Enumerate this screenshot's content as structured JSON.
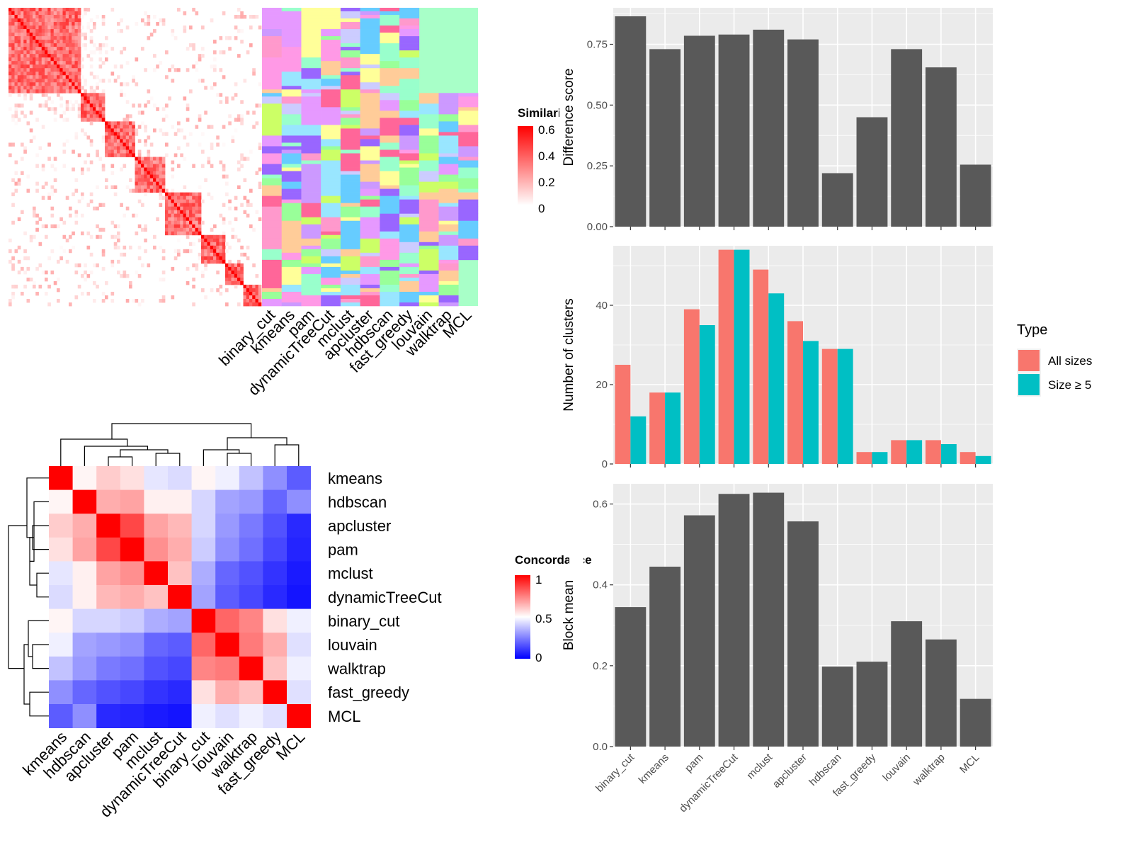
{
  "colors": {
    "panel_bg": "#ebebeb",
    "bar_gray": "#595959",
    "all_sizes": "#f8766d",
    "size_ge5": "#00bfc4",
    "sim_high": "#ff0000",
    "sim_low": "#ffffff",
    "conc_high": "#ff0000",
    "conc_mid": "#ffffff",
    "conc_low": "#0000ff"
  },
  "chart_data": [
    {
      "type": "heatmap",
      "id": "similarity",
      "legend_title": "Similarity",
      "legend_ticks": [
        "0.6",
        "0.4",
        "0.2",
        "0"
      ],
      "range": [
        0,
        0.65
      ]
    },
    {
      "type": "heatmap",
      "id": "cluster-labels",
      "columns": [
        "binary_cut",
        "kmeans",
        "pam",
        "dynamicTreeCut",
        "mclust",
        "apcluster",
        "hdbscan",
        "fast_greedy",
        "louvain",
        "walktrap",
        "MCL"
      ]
    },
    {
      "type": "heatmap",
      "id": "concordance",
      "legend_title": "Concordance",
      "legend_ticks": [
        "1",
        "0.5",
        "0"
      ],
      "rows": [
        "kmeans",
        "hdbscan",
        "apcluster",
        "pam",
        "mclust",
        "dynamicTreeCut",
        "binary_cut",
        "louvain",
        "walktrap",
        "fast_greedy",
        "MCL"
      ],
      "columns": [
        "kmeans",
        "hdbscan",
        "apcluster",
        "pam",
        "mclust",
        "dynamicTreeCut",
        "binary_cut",
        "louvain",
        "walktrap",
        "fast_greedy",
        "MCL"
      ],
      "values": [
        [
          1.0,
          0.52,
          0.6,
          0.56,
          0.45,
          0.43,
          0.52,
          0.47,
          0.38,
          0.28,
          0.18
        ],
        [
          0.52,
          1.0,
          0.66,
          0.68,
          0.53,
          0.53,
          0.42,
          0.32,
          0.3,
          0.2,
          0.28
        ],
        [
          0.6,
          0.66,
          1.0,
          0.86,
          0.68,
          0.64,
          0.42,
          0.3,
          0.24,
          0.16,
          0.08
        ],
        [
          0.56,
          0.68,
          0.86,
          1.0,
          0.72,
          0.66,
          0.4,
          0.28,
          0.22,
          0.14,
          0.07
        ],
        [
          0.45,
          0.53,
          0.68,
          0.72,
          1.0,
          0.62,
          0.34,
          0.2,
          0.16,
          0.1,
          0.05
        ],
        [
          0.43,
          0.53,
          0.64,
          0.66,
          0.62,
          1.0,
          0.32,
          0.18,
          0.14,
          0.08,
          0.04
        ],
        [
          0.52,
          0.42,
          0.42,
          0.4,
          0.34,
          0.32,
          1.0,
          0.8,
          0.74,
          0.56,
          0.47
        ],
        [
          0.47,
          0.32,
          0.3,
          0.28,
          0.2,
          0.18,
          0.8,
          1.0,
          0.76,
          0.66,
          0.44
        ],
        [
          0.38,
          0.3,
          0.24,
          0.22,
          0.16,
          0.14,
          0.74,
          0.76,
          1.0,
          0.62,
          0.47
        ],
        [
          0.28,
          0.2,
          0.16,
          0.14,
          0.1,
          0.08,
          0.56,
          0.66,
          0.62,
          1.0,
          0.44
        ],
        [
          0.18,
          0.28,
          0.08,
          0.07,
          0.05,
          0.04,
          0.47,
          0.44,
          0.47,
          0.44,
          1.0
        ]
      ]
    },
    {
      "type": "bar",
      "id": "difference-score",
      "ylabel": "Difference score",
      "categories": [
        "binary_cut",
        "kmeans",
        "pam",
        "dynamicTreeCut",
        "mclust",
        "apcluster",
        "hdbscan",
        "fast_greedy",
        "louvain",
        "walktrap",
        "MCL"
      ],
      "values": [
        0.865,
        0.73,
        0.785,
        0.79,
        0.81,
        0.77,
        0.22,
        0.45,
        0.73,
        0.655,
        0.255
      ],
      "ylim": [
        0,
        0.9
      ],
      "yticks": [
        "0.00",
        "0.25",
        "0.50",
        "0.75"
      ],
      "grid": true
    },
    {
      "type": "bar",
      "id": "number-of-clusters",
      "ylabel": "Number of clusters",
      "categories": [
        "binary_cut",
        "kmeans",
        "pam",
        "dynamicTreeCut",
        "mclust",
        "apcluster",
        "hdbscan",
        "fast_greedy",
        "louvain",
        "walktrap",
        "MCL"
      ],
      "series": [
        {
          "name": "All sizes",
          "values": [
            25,
            18,
            39,
            54,
            49,
            36,
            29,
            3,
            6,
            6,
            3
          ]
        },
        {
          "name": "Size ≥ 5",
          "values": [
            12,
            18,
            35,
            54,
            43,
            31,
            29,
            3,
            6,
            5,
            2
          ]
        }
      ],
      "ylim": [
        0,
        55
      ],
      "yticks": [
        "0",
        "20",
        "40"
      ],
      "legend_title": "Type",
      "legend_position": "right",
      "grid": true
    },
    {
      "type": "bar",
      "id": "block-mean",
      "ylabel": "Block mean",
      "categories": [
        "binary_cut",
        "kmeans",
        "pam",
        "dynamicTreeCut",
        "mclust",
        "apcluster",
        "hdbscan",
        "fast_greedy",
        "louvain",
        "walktrap",
        "MCL"
      ],
      "values": [
        0.345,
        0.445,
        0.572,
        0.625,
        0.628,
        0.557,
        0.198,
        0.21,
        0.31,
        0.265,
        0.118
      ],
      "ylim": [
        0,
        0.65
      ],
      "yticks": [
        "0.0",
        "0.2",
        "0.4",
        "0.6"
      ],
      "grid": true
    }
  ]
}
